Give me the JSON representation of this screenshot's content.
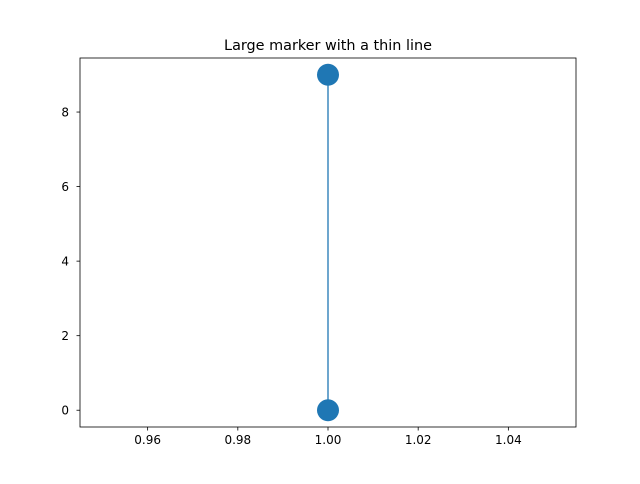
{
  "chart_data": {
    "type": "line",
    "title": "Large marker with a thin line",
    "xlabel": "",
    "ylabel": "",
    "xlim": [
      0.945,
      1.055
    ],
    "ylim": [
      -0.45,
      9.45
    ],
    "xticks": [
      0.96,
      0.98,
      1.0,
      1.02,
      1.04
    ],
    "xtick_labels": [
      "0.96",
      "0.98",
      "1.00",
      "1.02",
      "1.04"
    ],
    "yticks": [
      0,
      2,
      4,
      6,
      8
    ],
    "ytick_labels": [
      "0",
      "2",
      "4",
      "6",
      "8"
    ],
    "grid": false,
    "series": [
      {
        "x": [
          1.0,
          1.0
        ],
        "y": [
          0,
          9
        ],
        "color": "#1f77b4",
        "marker": "circle",
        "marker_size": "large",
        "line_width": "thin"
      }
    ]
  }
}
